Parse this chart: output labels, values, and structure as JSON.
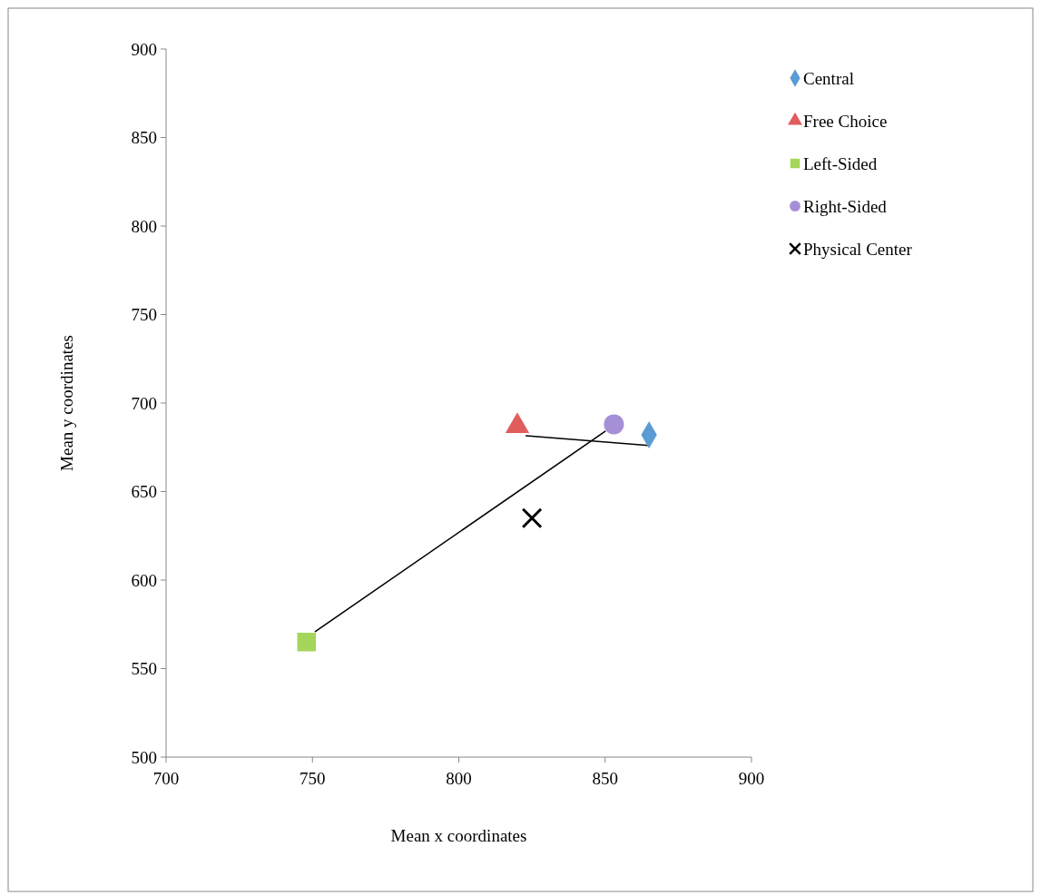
{
  "chart_data": {
    "type": "scatter",
    "xlabel": "Mean x coordinates",
    "ylabel": "Mean y coordinates",
    "xlim": [
      700,
      900
    ],
    "ylim": [
      500,
      900
    ],
    "xticks": [
      700,
      750,
      800,
      850,
      900
    ],
    "yticks": [
      500,
      550,
      600,
      650,
      700,
      750,
      800,
      850,
      900
    ],
    "grid": false,
    "legend": "top right",
    "series": [
      {
        "name": "Central",
        "color": "#5b9bd5",
        "marker": "diamond",
        "x": [
          865
        ],
        "values": [
          682
        ]
      },
      {
        "name": "Free Choice",
        "color": "#e05d5d",
        "marker": "triangle",
        "x": [
          820
        ],
        "values": [
          687
        ]
      },
      {
        "name": "Left-Sided",
        "color": "#a5d55a",
        "marker": "square",
        "x": [
          748
        ],
        "values": [
          565
        ]
      },
      {
        "name": "Right-Sided",
        "color": "#a58fd6",
        "marker": "circle",
        "x": [
          853
        ],
        "values": [
          688
        ]
      },
      {
        "name": "Physical Center",
        "color": "#000000",
        "marker": "cross",
        "x": [
          825
        ],
        "values": [
          635
        ]
      },
      {
        "type": "line",
        "color": "#000000",
        "marker": "none",
        "line_style": "solid",
        "x": [
          823,
          865
        ],
        "values": [
          681.5,
          676
        ]
      },
      {
        "type": "line",
        "color": "#000000",
        "marker": "none",
        "line_style": "solid",
        "x": [
          751,
          850
        ],
        "values": [
          571,
          684
        ]
      }
    ]
  }
}
